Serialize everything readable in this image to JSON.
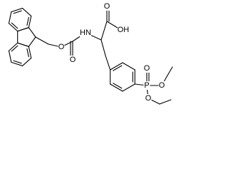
{
  "atom_labels": {
    "amide_nh": "HN",
    "ester_o": "O",
    "carbonyl_o": "O",
    "acid_o": "O",
    "acid_oh": "OH",
    "phosphorus": "P",
    "phosphoryl_o": "O",
    "ethoxy_o1": "O",
    "ethoxy_o2": "O"
  }
}
